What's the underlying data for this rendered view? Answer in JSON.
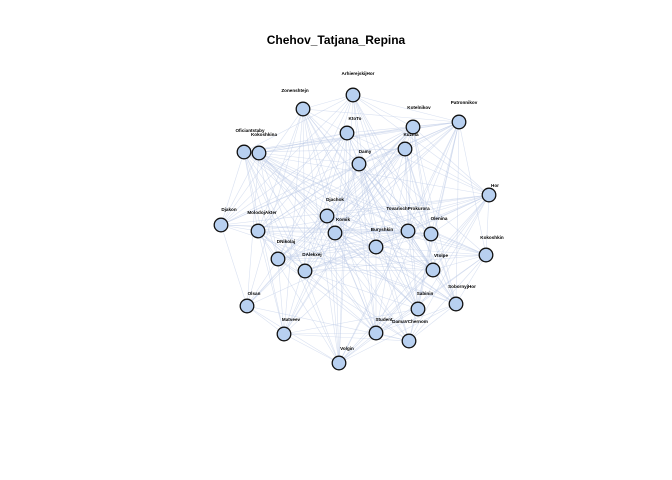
{
  "title": "Chehov_Tatjana_Repina",
  "colors": {
    "node_fill": "#b8d0f0",
    "node_stroke": "#111111",
    "edge": "#b9c9e6"
  },
  "nodes": [
    {
      "id": "ArhierejskijHor",
      "label": "ArhierejskijHor"
    },
    {
      "id": "Zonenshtejn",
      "label": "Zonenshtejn"
    },
    {
      "id": "Kotelnikov",
      "label": "Kotelnikov"
    },
    {
      "id": "Patronnikov",
      "label": "Patronnikov"
    },
    {
      "id": "KtoTo",
      "label": "KtoTo"
    },
    {
      "id": "Kuzma",
      "label": "Kuzma"
    },
    {
      "id": "Oficiantstaby",
      "label": "Oficiantstaby"
    },
    {
      "id": "Kokoshkina",
      "label": "Kokoshkina"
    },
    {
      "id": "Damy",
      "label": "Damy"
    },
    {
      "id": "Hor",
      "label": "Hor"
    },
    {
      "id": "Djachok",
      "label": "Djachok"
    },
    {
      "id": "Djakon",
      "label": "Djakon"
    },
    {
      "id": "MolodojAkter",
      "label": "MolodojAkter"
    },
    {
      "id": "Komik",
      "label": "Komik"
    },
    {
      "id": "TovarischProkurora",
      "label": "TovarischProkurora"
    },
    {
      "id": "Olenina",
      "label": "Olenina"
    },
    {
      "id": "Buryshkin",
      "label": "Buryshkin"
    },
    {
      "id": "DNikolaj",
      "label": "DNikolaj"
    },
    {
      "id": "DAlekxej",
      "label": "DAlekxej"
    },
    {
      "id": "Kokoshkin",
      "label": "Kokoshkin"
    },
    {
      "id": "Vtolpe",
      "label": "Vtolpe"
    },
    {
      "id": "Olsan",
      "label": "Olsan"
    },
    {
      "id": "Sabinin",
      "label": "Sabinin"
    },
    {
      "id": "SobornyjHor",
      "label": "SobornyjHor"
    },
    {
      "id": "Matveev",
      "label": "Matveev"
    },
    {
      "id": "Student",
      "label": "Student"
    },
    {
      "id": "DamaVChernom",
      "label": "DamaVChernom"
    },
    {
      "id": "Volgin",
      "label": "Volgin"
    }
  ]
}
